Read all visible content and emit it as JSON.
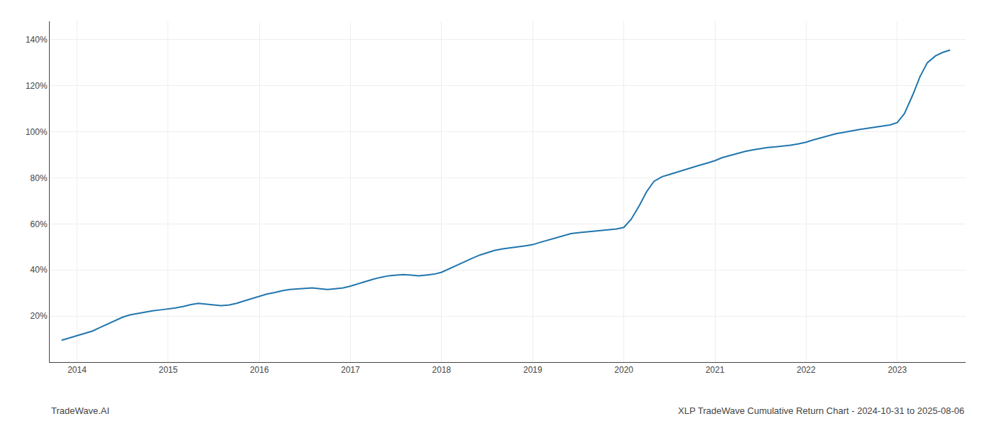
{
  "chart_data": {
    "type": "line",
    "title": "XLP TradeWave Cumulative Return Chart - 2024-10-31 to 2025-08-06",
    "annotations": [
      "TradeWave.AI"
    ],
    "x": [
      2013.83,
      2013.92,
      2014.0,
      2014.08,
      2014.17,
      2014.25,
      2014.33,
      2014.42,
      2014.5,
      2014.58,
      2014.67,
      2014.75,
      2014.83,
      2014.92,
      2015.0,
      2015.08,
      2015.17,
      2015.25,
      2015.33,
      2015.42,
      2015.5,
      2015.58,
      2015.67,
      2015.75,
      2015.83,
      2015.92,
      2016.0,
      2016.08,
      2016.17,
      2016.25,
      2016.33,
      2016.42,
      2016.5,
      2016.58,
      2016.67,
      2016.75,
      2016.83,
      2016.92,
      2017.0,
      2017.08,
      2017.17,
      2017.25,
      2017.33,
      2017.42,
      2017.5,
      2017.58,
      2017.67,
      2017.75,
      2017.83,
      2017.92,
      2018.0,
      2018.08,
      2018.17,
      2018.25,
      2018.33,
      2018.42,
      2018.5,
      2018.58,
      2018.67,
      2018.75,
      2018.83,
      2018.92,
      2019.0,
      2019.08,
      2019.17,
      2019.25,
      2019.33,
      2019.42,
      2019.5,
      2019.58,
      2019.67,
      2019.75,
      2019.83,
      2019.92,
      2020.0,
      2020.08,
      2020.17,
      2020.25,
      2020.33,
      2020.42,
      2020.5,
      2020.58,
      2020.67,
      2020.75,
      2020.83,
      2020.92,
      2021.0,
      2021.08,
      2021.17,
      2021.25,
      2021.33,
      2021.42,
      2021.5,
      2021.58,
      2021.67,
      2021.75,
      2021.83,
      2021.92,
      2022.0,
      2022.08,
      2022.17,
      2022.25,
      2022.33,
      2022.42,
      2022.5,
      2022.58,
      2022.67,
      2022.75,
      2022.83,
      2022.92,
      2023.0,
      2023.08,
      2023.17,
      2023.25,
      2023.33,
      2023.42,
      2023.5,
      2023.58
    ],
    "values": [
      9.5,
      10.5,
      11.5,
      12.5,
      13.5,
      15.0,
      16.5,
      18.0,
      19.5,
      20.5,
      21.2,
      21.8,
      22.3,
      22.7,
      23.0,
      23.5,
      24.2,
      25.0,
      25.5,
      25.2,
      24.8,
      24.5,
      24.8,
      25.5,
      26.5,
      27.5,
      28.5,
      29.5,
      30.2,
      31.0,
      31.5,
      31.8,
      32.0,
      32.2,
      31.8,
      31.5,
      31.8,
      32.2,
      33.0,
      34.0,
      35.0,
      36.0,
      36.8,
      37.5,
      37.8,
      38.0,
      37.8,
      37.5,
      37.8,
      38.2,
      39.0,
      40.5,
      42.0,
      43.5,
      45.0,
      46.5,
      47.5,
      48.5,
      49.2,
      49.5,
      50.0,
      50.5,
      51.0,
      52.0,
      53.0,
      54.0,
      55.0,
      55.8,
      56.2,
      56.5,
      56.8,
      57.0,
      57.3,
      57.8,
      58.5,
      62.0,
      68.0,
      74.0,
      78.5,
      80.5,
      81.5,
      82.5,
      83.5,
      84.5,
      85.5,
      86.5,
      87.5,
      88.8,
      89.8,
      90.8,
      91.5,
      92.2,
      92.8,
      93.2,
      93.5,
      93.8,
      94.2,
      94.8,
      95.5,
      96.5,
      97.5,
      98.5,
      99.2,
      99.8,
      100.5,
      101.0,
      101.5,
      102.0,
      102.5,
      103.0,
      104.0,
      108.0,
      116.0,
      124.0,
      130.0,
      133.0,
      134.5,
      135.5
    ],
    "color": "#2176ae",
    "xlim": [
      2013.7,
      2023.75
    ],
    "xticks": [
      2014,
      2015,
      2016,
      2017,
      2018,
      2019,
      2020,
      2021,
      2022,
      2023
    ],
    "ylim": [
      0,
      148
    ],
    "yticks": [
      {
        "value": 20,
        "label": "20%"
      },
      {
        "value": 40,
        "label": "40%"
      },
      {
        "value": 60,
        "label": "60%"
      },
      {
        "value": 80,
        "label": "80%"
      },
      {
        "value": 100,
        "label": "100%"
      },
      {
        "value": 120,
        "label": "120%"
      },
      {
        "value": 140,
        "label": "140%"
      }
    ],
    "grid": true
  }
}
